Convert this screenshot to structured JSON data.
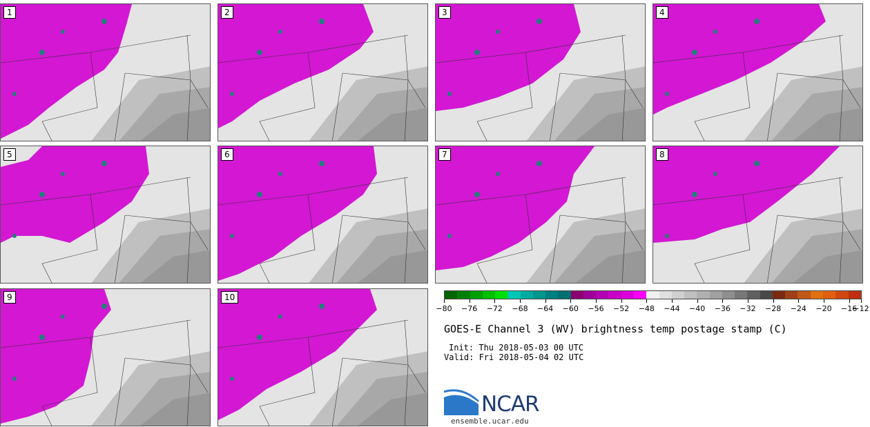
{
  "panels": [
    {
      "label": "1"
    },
    {
      "label": "2"
    },
    {
      "label": "3"
    },
    {
      "label": "4"
    },
    {
      "label": "5"
    },
    {
      "label": "6"
    },
    {
      "label": "7"
    },
    {
      "label": "8"
    },
    {
      "label": "9"
    },
    {
      "label": "10"
    }
  ],
  "colorbar": {
    "colors": [
      "#006400",
      "#008000",
      "#00a000",
      "#00c000",
      "#00e000",
      "#00c8b4",
      "#00aaa0",
      "#00968c",
      "#008080",
      "#007070",
      "#8b006f",
      "#a0009a",
      "#b400b4",
      "#c800c8",
      "#dc00dc",
      "#ff00ff",
      "#f0f0f0",
      "#e0e0e0",
      "#d0d0d0",
      "#c0c0c0",
      "#b0b0b0",
      "#a0a0a0",
      "#909090",
      "#787878",
      "#606060",
      "#484848",
      "#7a2a10",
      "#a04018",
      "#c05818",
      "#e07010",
      "#e06010",
      "#d04810",
      "#c03010"
    ],
    "ticks": [
      "−80",
      "−76",
      "−72",
      "−68",
      "−64",
      "−60",
      "−56",
      "−52",
      "−48",
      "−44",
      "−40",
      "−36",
      "−32",
      "−28",
      "−24",
      "−20",
      "−16",
      "−12"
    ]
  },
  "title": "GOES-E Channel 3 (WV) brightness temp postage stamp (C)",
  "init": "Init: Thu 2018-05-03 00 UTC",
  "valid": "Valid: Fri 2018-05-04 02 UTC",
  "logo": {
    "text": "NCAR",
    "primary": "#1e3b73",
    "accent": "#2b78c8"
  },
  "site": "ensemble.ucar.edu"
}
